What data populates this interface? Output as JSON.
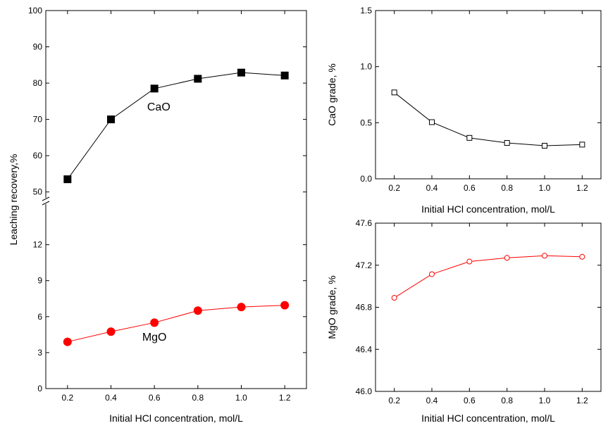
{
  "chart_data": [
    {
      "type": "line",
      "panel": "left",
      "xlabel": "Initial HCl concentration, mol/L",
      "ylabel": "Leaching recovery,%",
      "x": [
        0.2,
        0.4,
        0.6,
        0.8,
        1.0,
        1.2
      ],
      "x_ticks": [
        "0.2",
        "0.4",
        "0.6",
        "0.8",
        "1.0",
        "1.2"
      ],
      "xlim": [
        0.1,
        1.3
      ],
      "broken_y_axis": true,
      "upper_ylim": [
        48,
        100
      ],
      "upper_y_ticks": [
        "50",
        "60",
        "70",
        "80",
        "90",
        "100"
      ],
      "lower_ylim": [
        0,
        15.5
      ],
      "lower_y_ticks": [
        "0",
        "3",
        "6",
        "9",
        "12"
      ],
      "series": [
        {
          "name": "CaO",
          "segment": "upper",
          "marker": "filled-square",
          "color": "#000000",
          "values": [
            53.5,
            70.0,
            78.5,
            81.2,
            82.9,
            82.1
          ]
        },
        {
          "name": "MgO",
          "segment": "lower",
          "marker": "filled-circle",
          "color": "#ff0000",
          "values": [
            3.9,
            4.75,
            5.5,
            6.5,
            6.8,
            6.95
          ]
        }
      ],
      "annotations": [
        {
          "text": "CaO",
          "x": 0.62,
          "y": 72.4,
          "segment": "upper"
        },
        {
          "text": "MgO",
          "x": 0.6,
          "y": 4.0,
          "segment": "lower"
        }
      ]
    },
    {
      "type": "line",
      "panel": "top-right",
      "xlabel": "Initial HCl concentration, mol/L",
      "ylabel": "CaO grade, %",
      "x": [
        0.2,
        0.4,
        0.6,
        0.8,
        1.0,
        1.2
      ],
      "x_ticks": [
        "0.2",
        "0.4",
        "0.6",
        "0.8",
        "1.0",
        "1.2"
      ],
      "xlim": [
        0.1,
        1.3
      ],
      "ylim": [
        0.0,
        1.5
      ],
      "y_ticks": [
        "0.0",
        "0.5",
        "1.0",
        "1.5"
      ],
      "series": [
        {
          "marker": "open-square",
          "color": "#000000",
          "values": [
            0.77,
            0.505,
            0.365,
            0.32,
            0.295,
            0.305
          ]
        }
      ]
    },
    {
      "type": "line",
      "panel": "bottom-right",
      "xlabel": "Initial HCl concentration, mol/L",
      "ylabel": "MgO grade, %",
      "x": [
        0.2,
        0.4,
        0.6,
        0.8,
        1.0,
        1.2
      ],
      "x_ticks": [
        "0.2",
        "0.4",
        "0.6",
        "0.8",
        "1.0",
        "1.2"
      ],
      "xlim": [
        0.1,
        1.3
      ],
      "ylim": [
        46.0,
        47.6
      ],
      "y_ticks": [
        "46.0",
        "46.4",
        "46.8",
        "47.2",
        "47.6"
      ],
      "series": [
        {
          "marker": "open-circle",
          "color": "#ff0000",
          "values": [
            46.89,
            47.115,
            47.235,
            47.27,
            47.29,
            47.28
          ]
        }
      ]
    }
  ]
}
